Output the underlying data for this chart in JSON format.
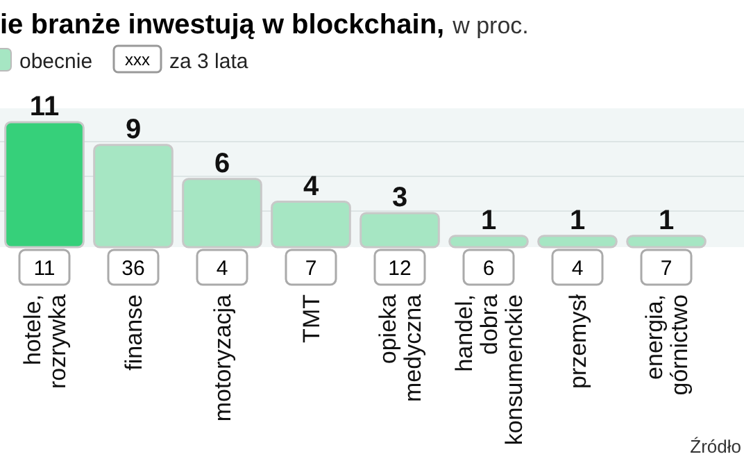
{
  "chart_data": {
    "type": "bar",
    "title": "ie branże inwestują w blockchain,",
    "subtitle": "w proc.",
    "categories": [
      "hotele, rozrywka",
      "finanse",
      "motoryzacja",
      "TMT",
      "opieka medyczna",
      "handel, dobra konsumenckie",
      "przemysł",
      "energia, górnictwo"
    ],
    "series": [
      {
        "name": "obecnie",
        "color": "#a6e6c3",
        "colors": [
          "#36d07a",
          "#a6e6c3",
          "#a6e6c3",
          "#a6e6c3",
          "#a6e6c3",
          "#a6e6c3",
          "#a6e6c3",
          "#a6e6c3"
        ],
        "values": [
          11,
          9,
          6,
          4,
          3,
          1,
          1,
          1
        ]
      }
    ],
    "data_labels": true,
    "legend": "top left",
    "annotations": [
      {
        "text": "xxx"
      },
      {
        "text": "za 3 lata"
      },
      {
        "text": "11",
        "x": "hotele, rozrywka"
      },
      {
        "text": "36",
        "x": "finanse"
      },
      {
        "text": "4",
        "x": "motoryzacja"
      },
      {
        "text": "7",
        "x": "TMT"
      },
      {
        "text": "12",
        "x": "opieka medyczna"
      },
      {
        "text": "6",
        "x": "handel, dobra konsumenckie"
      },
      {
        "text": "4",
        "x": "przemysł"
      },
      {
        "text": "7",
        "x": "energia, górnictwo"
      },
      {
        "text": "Źródło"
      }
    ]
  }
}
